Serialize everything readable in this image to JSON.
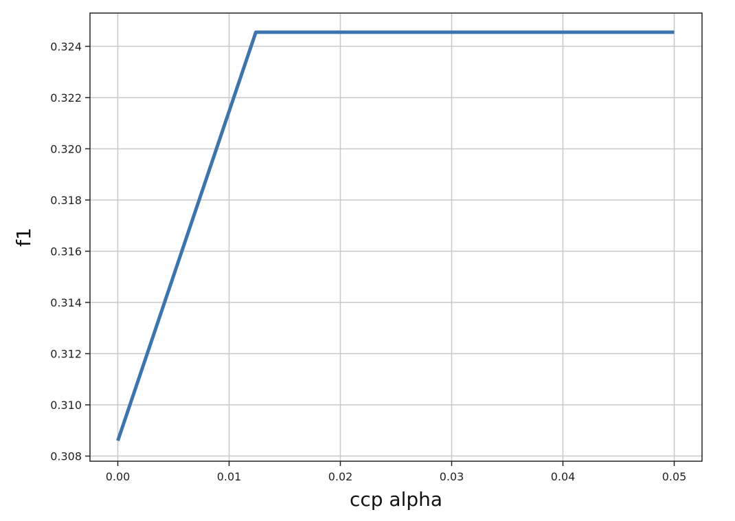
{
  "chart_data": {
    "type": "line",
    "title": "",
    "xlabel": "ccp alpha",
    "ylabel": "f1",
    "xlim": [
      -0.0025,
      0.0525
    ],
    "ylim": [
      0.3078,
      0.3253
    ],
    "grid": true,
    "x_ticks": [
      0.0,
      0.01,
      0.02,
      0.03,
      0.04,
      0.05
    ],
    "x_tick_labels": [
      "0.00",
      "0.01",
      "0.02",
      "0.03",
      "0.04",
      "0.05"
    ],
    "y_ticks": [
      0.308,
      0.31,
      0.312,
      0.314,
      0.316,
      0.318,
      0.32,
      0.322,
      0.324
    ],
    "y_tick_labels": [
      "0.308",
      "0.310",
      "0.312",
      "0.314",
      "0.316",
      "0.318",
      "0.320",
      "0.322",
      "0.324"
    ],
    "series": [
      {
        "color": "#3a75b0",
        "x": [
          0.0,
          0.0124,
          0.05
        ],
        "y": [
          0.3086,
          0.32455,
          0.32455
        ]
      }
    ]
  }
}
